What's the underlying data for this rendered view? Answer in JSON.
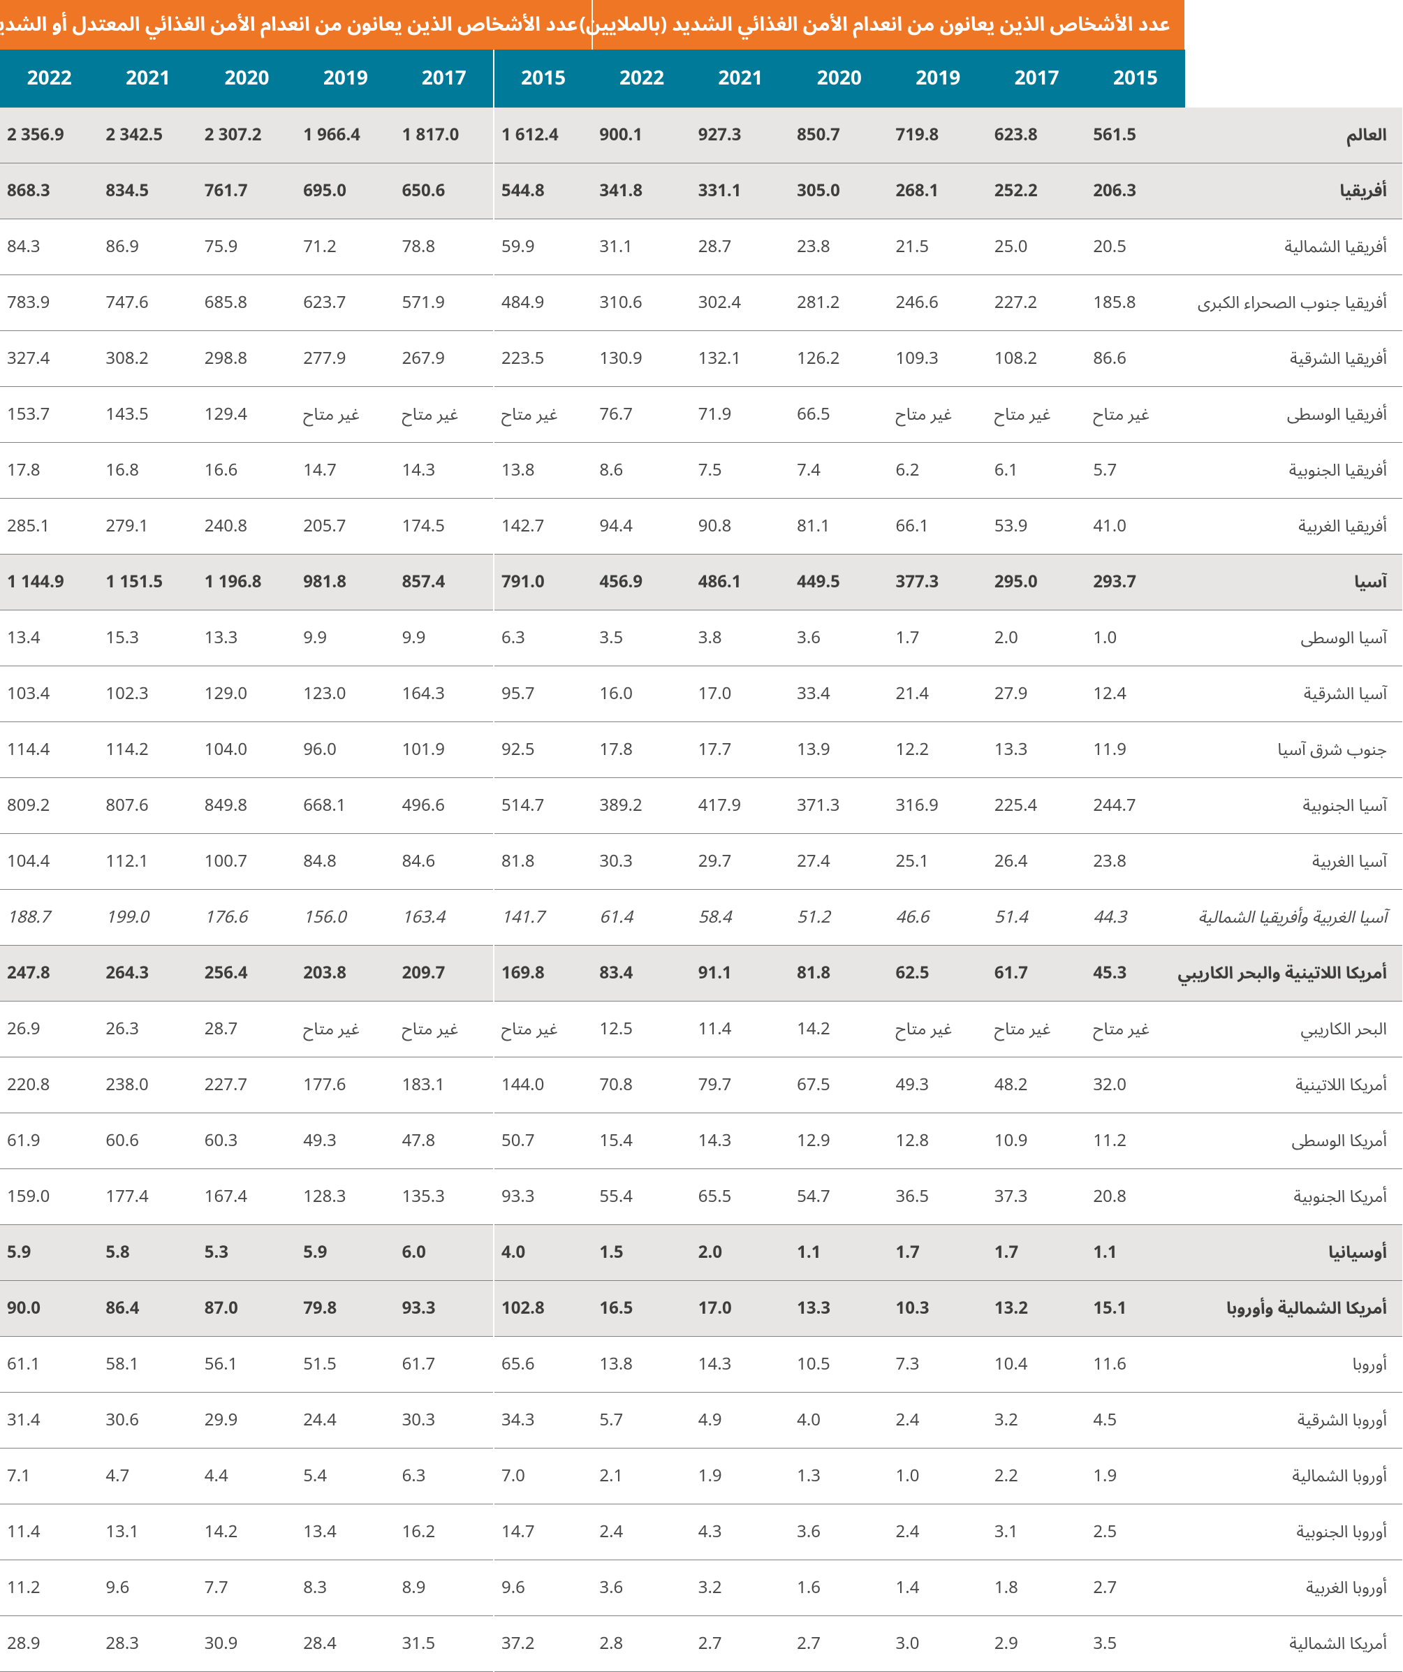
{
  "type": "table",
  "colors": {
    "header_section_bg": "#ee7624",
    "header_year_bg": "#007a99",
    "header_fg": "#ffffff",
    "shade_bg": "#e8e6e4",
    "text_fg": "#4a4a4a",
    "bold_fg": "#3d3d3d",
    "rule": "#808285"
  },
  "fontsize": {
    "header_section": 28,
    "header_year": 28,
    "cell": 24
  },
  "section_headers": {
    "moderate_or_severe": "عدد الأشخاص الذين يعانون من انعدام الأمن الغذائي المعتدل أو الشديد (بالملايين)",
    "severe": "عدد الأشخاص الذين يعانون من انعدام الأمن الغذائي الشديد (بالملايين)"
  },
  "years": [
    "2015",
    "2017",
    "2019",
    "2020",
    "2021",
    "2022"
  ],
  "rows": [
    {
      "k": "world",
      "label": "العالم",
      "style": "bold shade",
      "sev": [
        "561.5",
        "623.8",
        "719.8",
        "850.7",
        "927.3",
        "900.1"
      ],
      "mod": [
        "1 612.4",
        "1 817.0",
        "1 966.4",
        "2 307.2",
        "2 342.5",
        "2 356.9"
      ]
    },
    {
      "k": "africa",
      "label": "أفريقيا",
      "style": "bold shade",
      "sev": [
        "206.3",
        "252.2",
        "268.1",
        "305.0",
        "331.1",
        "341.8"
      ],
      "mod": [
        "544.8",
        "650.6",
        "695.0",
        "761.7",
        "834.5",
        "868.3"
      ]
    },
    {
      "k": "n_africa",
      "label": "أفريقيا الشمالية",
      "style": "plain",
      "sev": [
        "20.5",
        "25.0",
        "21.5",
        "23.8",
        "28.7",
        "31.1"
      ],
      "mod": [
        "59.9",
        "78.8",
        "71.2",
        "75.9",
        "86.9",
        "84.3"
      ]
    },
    {
      "k": "ssa",
      "label": "أفريقيا جنوب الصحراء الكبرى",
      "style": "plain",
      "sev": [
        "185.8",
        "227.2",
        "246.6",
        "281.2",
        "302.4",
        "310.6"
      ],
      "mod": [
        "484.9",
        "571.9",
        "623.7",
        "685.8",
        "747.6",
        "783.9"
      ]
    },
    {
      "k": "e_africa",
      "label": "أفريقيا الشرقية",
      "style": "plain",
      "sev": [
        "86.6",
        "108.2",
        "109.3",
        "126.2",
        "132.1",
        "130.9"
      ],
      "mod": [
        "223.5",
        "267.9",
        "277.9",
        "298.8",
        "308.2",
        "327.4"
      ]
    },
    {
      "k": "m_africa",
      "label": "أفريقيا الوسطى",
      "style": "plain",
      "sev": [
        "غير متاح",
        "غير متاح",
        "غير متاح",
        "66.5",
        "71.9",
        "76.7"
      ],
      "mod": [
        "غير متاح",
        "غير متاح",
        "غير متاح",
        "129.4",
        "143.5",
        "153.7"
      ]
    },
    {
      "k": "s_africa",
      "label": "أفريقيا الجنوبية",
      "style": "plain",
      "sev": [
        "5.7",
        "6.1",
        "6.2",
        "7.4",
        "7.5",
        "8.6"
      ],
      "mod": [
        "13.8",
        "14.3",
        "14.7",
        "16.6",
        "16.8",
        "17.8"
      ]
    },
    {
      "k": "w_africa",
      "label": "أفريقيا الغربية",
      "style": "plain",
      "sev": [
        "41.0",
        "53.9",
        "66.1",
        "81.1",
        "90.8",
        "94.4"
      ],
      "mod": [
        "142.7",
        "174.5",
        "205.7",
        "240.8",
        "279.1",
        "285.1"
      ]
    },
    {
      "k": "asia",
      "label": "آسيا",
      "style": "bold shade",
      "sev": [
        "293.7",
        "295.0",
        "377.3",
        "449.5",
        "486.1",
        "456.9"
      ],
      "mod": [
        "791.0",
        "857.4",
        "981.8",
        "1 196.8",
        "1 151.5",
        "1 144.9"
      ]
    },
    {
      "k": "c_asia",
      "label": "آسيا الوسطى",
      "style": "plain",
      "sev": [
        "1.0",
        "2.0",
        "1.7",
        "3.6",
        "3.8",
        "3.5"
      ],
      "mod": [
        "6.3",
        "9.9",
        "9.9",
        "13.3",
        "15.3",
        "13.4"
      ]
    },
    {
      "k": "e_asia",
      "label": "آسيا الشرقية",
      "style": "plain",
      "sev": [
        "12.4",
        "27.9",
        "21.4",
        "33.4",
        "17.0",
        "16.0"
      ],
      "mod": [
        "95.7",
        "164.3",
        "123.0",
        "129.0",
        "102.3",
        "103.4"
      ]
    },
    {
      "k": "se_asia",
      "label": "جنوب شرق آسيا",
      "style": "plain",
      "sev": [
        "11.9",
        "13.3",
        "12.2",
        "13.9",
        "17.7",
        "17.8"
      ],
      "mod": [
        "92.5",
        "101.9",
        "96.0",
        "104.0",
        "114.2",
        "114.4"
      ]
    },
    {
      "k": "s_asia",
      "label": "آسيا الجنوبية",
      "style": "plain",
      "sev": [
        "244.7",
        "225.4",
        "316.9",
        "371.3",
        "417.9",
        "389.2"
      ],
      "mod": [
        "514.7",
        "496.6",
        "668.1",
        "849.8",
        "807.6",
        "809.2"
      ]
    },
    {
      "k": "w_asia",
      "label": "آسيا الغربية",
      "style": "plain",
      "sev": [
        "23.8",
        "26.4",
        "25.1",
        "27.4",
        "29.7",
        "30.3"
      ],
      "mod": [
        "81.8",
        "84.6",
        "84.8",
        "100.7",
        "112.1",
        "104.4"
      ]
    },
    {
      "k": "wa_na",
      "label": "آسيا الغربية وأفريقيا الشمالية",
      "style": "italic",
      "sev": [
        "44.3",
        "51.4",
        "46.6",
        "51.2",
        "58.4",
        "61.4"
      ],
      "mod": [
        "141.7",
        "163.4",
        "156.0",
        "176.6",
        "199.0",
        "188.7"
      ]
    },
    {
      "k": "lac",
      "label": "أمريكا اللاتينية والبحر الكاريبي",
      "style": "bold shade",
      "sev": [
        "45.3",
        "61.7",
        "62.5",
        "81.8",
        "91.1",
        "83.4"
      ],
      "mod": [
        "169.8",
        "209.7",
        "203.8",
        "256.4",
        "264.3",
        "247.8"
      ]
    },
    {
      "k": "carib",
      "label": "البحر الكاريبي",
      "style": "plain",
      "sev": [
        "غير متاح",
        "غير متاح",
        "غير متاح",
        "14.2",
        "11.4",
        "12.5"
      ],
      "mod": [
        "غير متاح",
        "غير متاح",
        "غير متاح",
        "28.7",
        "26.3",
        "26.9"
      ]
    },
    {
      "k": "la",
      "label": "أمريكا اللاتينية",
      "style": "plain",
      "sev": [
        "32.0",
        "48.2",
        "49.3",
        "67.5",
        "79.7",
        "70.8"
      ],
      "mod": [
        "144.0",
        "183.1",
        "177.6",
        "227.7",
        "238.0",
        "220.8"
      ]
    },
    {
      "k": "c_amer",
      "label": "أمريكا الوسطى",
      "style": "plain",
      "sev": [
        "11.2",
        "10.9",
        "12.8",
        "12.9",
        "14.3",
        "15.4"
      ],
      "mod": [
        "50.7",
        "47.8",
        "49.3",
        "60.3",
        "60.6",
        "61.9"
      ]
    },
    {
      "k": "s_amer",
      "label": "أمريكا الجنوبية",
      "style": "plain",
      "sev": [
        "20.8",
        "37.3",
        "36.5",
        "54.7",
        "65.5",
        "55.4"
      ],
      "mod": [
        "93.3",
        "135.3",
        "128.3",
        "167.4",
        "177.4",
        "159.0"
      ]
    },
    {
      "k": "oceania",
      "label": "أوسيانيا",
      "style": "bold shade",
      "sev": [
        "1.1",
        "1.7",
        "1.7",
        "1.1",
        "2.0",
        "1.5"
      ],
      "mod": [
        "4.0",
        "6.0",
        "5.9",
        "5.3",
        "5.8",
        "5.9"
      ]
    },
    {
      "k": "na_eur",
      "label": "أمريكا الشمالية وأوروبا",
      "style": "bold shade",
      "sev": [
        "15.1",
        "13.2",
        "10.3",
        "13.3",
        "17.0",
        "16.5"
      ],
      "mod": [
        "102.8",
        "93.3",
        "79.8",
        "87.0",
        "86.4",
        "90.0"
      ]
    },
    {
      "k": "europe",
      "label": "أوروبا",
      "style": "plain",
      "sev": [
        "11.6",
        "10.4",
        "7.3",
        "10.5",
        "14.3",
        "13.8"
      ],
      "mod": [
        "65.6",
        "61.7",
        "51.5",
        "56.1",
        "58.1",
        "61.1"
      ]
    },
    {
      "k": "e_eur",
      "label": "أوروبا الشرقية",
      "style": "plain",
      "sev": [
        "4.5",
        "3.2",
        "2.4",
        "4.0",
        "4.9",
        "5.7"
      ],
      "mod": [
        "34.3",
        "30.3",
        "24.4",
        "29.9",
        "30.6",
        "31.4"
      ]
    },
    {
      "k": "n_eur",
      "label": "أوروبا الشمالية",
      "style": "plain",
      "sev": [
        "1.9",
        "2.2",
        "1.0",
        "1.3",
        "1.9",
        "2.1"
      ],
      "mod": [
        "7.0",
        "6.3",
        "5.4",
        "4.4",
        "4.7",
        "7.1"
      ]
    },
    {
      "k": "s_eur",
      "label": "أوروبا الجنوبية",
      "style": "plain",
      "sev": [
        "2.5",
        "3.1",
        "2.4",
        "3.6",
        "4.3",
        "2.4"
      ],
      "mod": [
        "14.7",
        "16.2",
        "13.4",
        "14.2",
        "13.1",
        "11.4"
      ]
    },
    {
      "k": "w_eur",
      "label": "أوروبا الغربية",
      "style": "plain",
      "sev": [
        "2.7",
        "1.8",
        "1.4",
        "1.6",
        "3.2",
        "3.6"
      ],
      "mod": [
        "9.6",
        "8.9",
        "8.3",
        "7.7",
        "9.6",
        "11.2"
      ]
    },
    {
      "k": "n_amer",
      "label": "أمريكا الشمالية",
      "style": "plain",
      "sev": [
        "3.5",
        "2.9",
        "3.0",
        "2.7",
        "2.7",
        "2.8"
      ],
      "mod": [
        "37.2",
        "31.5",
        "28.4",
        "30.9",
        "28.3",
        "28.9"
      ]
    }
  ]
}
